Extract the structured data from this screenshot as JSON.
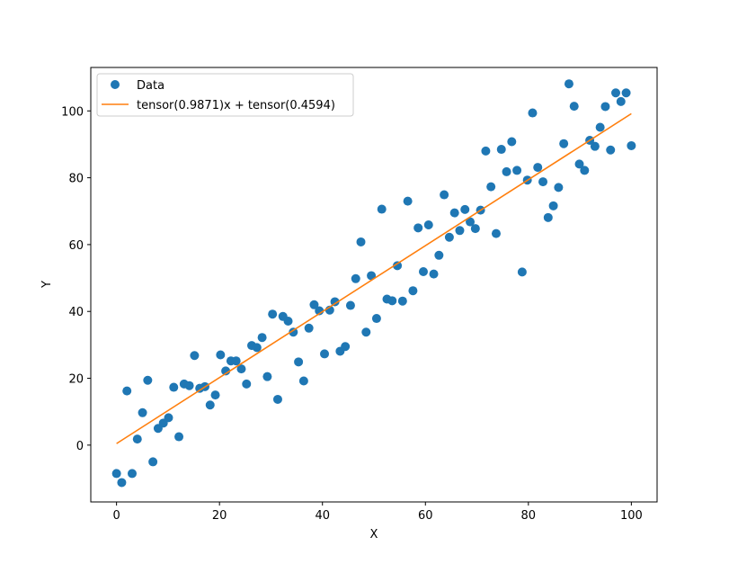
{
  "chart_data": {
    "type": "scatter",
    "xlabel": "X",
    "ylabel": "Y",
    "xlim": [
      -5,
      105
    ],
    "ylim": [
      -17,
      113
    ],
    "xticks": [
      0,
      20,
      40,
      60,
      80,
      100
    ],
    "yticks": [
      0,
      20,
      40,
      60,
      80,
      100
    ],
    "grid": false,
    "legend_placement": "upper-left",
    "series": [
      {
        "name": "Data",
        "kind": "scatter",
        "color": "#1f77b4",
        "x": [
          0,
          1.01,
          2.02,
          3.03,
          4.04,
          5.05,
          6.06,
          7.07,
          8.08,
          9.09,
          10.1,
          11.11,
          12.12,
          13.13,
          14.14,
          15.15,
          16.16,
          17.17,
          18.18,
          19.19,
          20.2,
          21.21,
          22.22,
          23.23,
          24.24,
          25.25,
          26.26,
          27.27,
          28.28,
          29.29,
          30.3,
          31.31,
          32.32,
          33.33,
          34.34,
          35.35,
          36.36,
          37.37,
          38.38,
          39.39,
          40.4,
          41.41,
          42.42,
          43.43,
          44.44,
          45.45,
          46.46,
          47.47,
          48.48,
          49.49,
          50.51,
          51.52,
          52.53,
          53.54,
          54.55,
          55.56,
          56.57,
          57.58,
          58.59,
          59.6,
          60.61,
          61.62,
          62.63,
          63.64,
          64.65,
          65.66,
          66.67,
          67.68,
          68.69,
          69.7,
          70.71,
          71.72,
          72.73,
          73.74,
          74.75,
          75.76,
          76.77,
          77.78,
          78.79,
          79.8,
          80.81,
          81.82,
          82.83,
          83.84,
          84.85,
          85.86,
          86.87,
          87.88,
          88.89,
          89.9,
          90.91,
          91.92,
          92.93,
          93.94,
          94.95,
          95.96,
          96.97,
          97.98,
          98.99,
          100
        ],
        "y": [
          -8.5,
          -11.2,
          16.2,
          -8.5,
          1.8,
          9.7,
          19.4,
          -5.0,
          5.0,
          6.6,
          8.2,
          17.3,
          2.5,
          18.3,
          17.8,
          26.8,
          17.0,
          17.5,
          12.0,
          15.0,
          27.0,
          22.2,
          25.2,
          25.2,
          22.8,
          18.3,
          29.8,
          29.2,
          32.2,
          20.5,
          39.2,
          13.7,
          38.5,
          37.1,
          33.8,
          24.9,
          19.2,
          35.0,
          42.0,
          40.2,
          27.3,
          40.4,
          42.9,
          28.1,
          29.5,
          41.8,
          49.8,
          60.8,
          33.8,
          50.7,
          37.9,
          70.6,
          43.7,
          43.2,
          53.7,
          43.1,
          73.0,
          46.2,
          65.0,
          51.9,
          65.9,
          51.2,
          56.8,
          74.9,
          62.2,
          69.5,
          64.2,
          70.5,
          66.8,
          64.8,
          70.3,
          88.0,
          77.3,
          63.3,
          88.5,
          81.8,
          90.8,
          82.2,
          51.8,
          79.3,
          99.4,
          83.1,
          78.8,
          68.1,
          71.6,
          77.1,
          90.2,
          108.1,
          101.4,
          84.1,
          82.2,
          91.2,
          89.4,
          95.1,
          101.3,
          88.3,
          105.4,
          102.8,
          105.4,
          89.6
        ]
      },
      {
        "name": "tensor(0.9871)x + tensor(0.4594)",
        "kind": "line",
        "color": "#ff7f0e",
        "slope": 0.9871,
        "intercept": 0.4594,
        "x": [
          0,
          100
        ]
      }
    ]
  }
}
